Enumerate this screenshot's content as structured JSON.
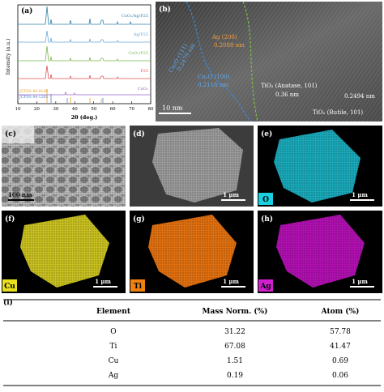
{
  "panel_a": {
    "label": "(a)",
    "y_label": "Intensity (a.u.)",
    "x_label": "2θ (deg.)",
    "xlim": [
      10,
      80
    ],
    "xticks": [
      10,
      20,
      30,
      40,
      50,
      60,
      70,
      80
    ],
    "series": [
      "CuOₓ/Ag/P25",
      "Ag/P25",
      "CuOₓ/P25",
      "P25",
      "CuOₓ"
    ],
    "references": [
      "JCPDS 86-0148",
      "JCPDS 84-1285"
    ]
  },
  "panel_b": {
    "label": "(b)",
    "ag": "Ag (200)",
    "ag_d": "0.2088 nm",
    "cu111": "Cu₂O (111)",
    "cu111_d": "0.2479 nm",
    "cu100": "Cu₂O (100)",
    "cu100_d": "0.2118 nm",
    "anatase": "TiO₂ (Anatase, 101)",
    "anatase_d": "0.36 nm",
    "rutile_d": "0.2494 nm",
    "rutile": "TiO₂ (Rutile, 101)",
    "scale": "10 nm"
  },
  "panels": [
    {
      "label": "(c)",
      "scale": "100 nm"
    },
    {
      "label": "(d)",
      "scale": "1 μm"
    },
    {
      "label": "(e)",
      "element": "O",
      "scale": "1 μm"
    },
    {
      "label": "(f)",
      "element": "Cu",
      "scale": "1 μm"
    },
    {
      "label": "(g)",
      "element": "Ti",
      "scale": "1 μm"
    },
    {
      "label": "(h)",
      "element": "Ag",
      "scale": "1 μm"
    }
  ],
  "table": {
    "label": "(i)",
    "header": [
      "Element",
      "Mass Norm. (%)",
      "Atom (%)"
    ],
    "rows": [
      [
        "O",
        "31.22",
        "57.78"
      ],
      [
        "Ti",
        "67.08",
        "41.47"
      ],
      [
        "Cu",
        "1.51",
        "0.69"
      ],
      [
        "Ag",
        "0.19",
        "0.06"
      ]
    ]
  }
}
